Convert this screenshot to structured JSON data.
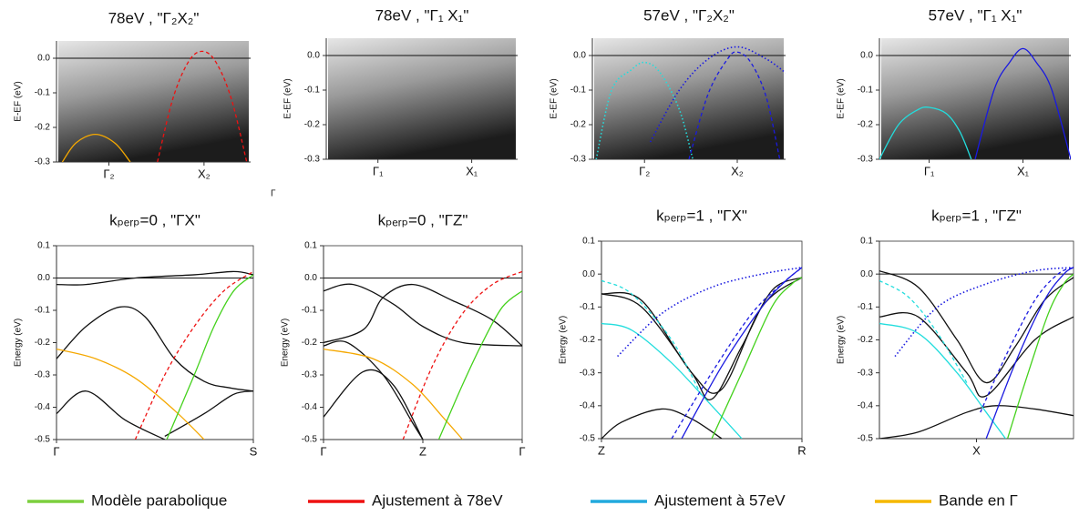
{
  "chart_data": [
    {
      "type": "line",
      "title": "78eV , \"Γ₂X₂\"",
      "ylabel": "E-EF (eV)",
      "image": true,
      "zero_line": true,
      "xlim": [
        0,
        1
      ],
      "xticks": [
        {
          "value": 0.27,
          "label": "Γ₂"
        },
        {
          "value": 0.76,
          "label": "X₂"
        }
      ],
      "ylim": [
        -0.3,
        0.05
      ],
      "yticks": [
        {
          "value": 0,
          "label": "0.0"
        },
        -0.1,
        -0.2,
        -0.3
      ],
      "series": [
        {
          "color": "#f5a800",
          "style": "solid",
          "x": [
            0.03,
            0.1,
            0.2,
            0.3,
            0.38
          ],
          "values": [
            -0.3,
            -0.245,
            -0.22,
            -0.245,
            -0.3
          ]
        },
        {
          "color": "#ee1111",
          "style": "dashed",
          "x": [
            0.52,
            0.6,
            0.68,
            0.75,
            0.82,
            0.9,
            0.98
          ],
          "values": [
            -0.3,
            -0.116,
            -0.01,
            0.02,
            -0.01,
            -0.116,
            -0.3
          ]
        }
      ]
    },
    {
      "type": "line",
      "title": "78eV , \"Γ₁ X₁\"",
      "ylabel": "E-EF (eV)",
      "image": true,
      "zero_line": true,
      "xlim": [
        0,
        1
      ],
      "xticks": [
        {
          "value": 0.27,
          "label": "Γ₁"
        },
        {
          "value": 0.76,
          "label": "X₁"
        }
      ],
      "ylim": [
        -0.3,
        0.05
      ],
      "yticks": [
        {
          "value": 0,
          "label": "0.0"
        },
        -0.1,
        -0.2,
        -0.3
      ],
      "series": []
    },
    {
      "type": "line",
      "title": "57eV , \"Γ₂X₂\"",
      "ylabel": "E-EF (eV)",
      "image": true,
      "zero_line": true,
      "xlim": [
        0,
        1
      ],
      "xticks": [
        {
          "value": 0.27,
          "label": "Γ₂"
        },
        {
          "value": 0.75,
          "label": "X₂"
        }
      ],
      "ylim": [
        -0.3,
        0.05
      ],
      "yticks": [
        {
          "value": 0,
          "label": "0.0"
        },
        -0.1,
        -0.2,
        -0.3
      ],
      "series": [
        {
          "color": "#22dddd",
          "style": "dotted",
          "x": [
            0.02,
            0.1,
            0.2,
            0.27,
            0.35,
            0.45,
            0.52
          ],
          "values": [
            -0.3,
            -0.1,
            -0.042,
            -0.02,
            -0.049,
            -0.156,
            -0.3
          ]
        },
        {
          "color": "#1a1ae0",
          "style": "dashed",
          "x": [
            0.5,
            0.6,
            0.7,
            0.75,
            0.82,
            0.9,
            0.97
          ],
          "values": [
            -0.3,
            -0.11,
            -0.01,
            0.01,
            -0.02,
            -0.12,
            -0.3
          ]
        },
        {
          "color": "#1a1ae0",
          "style": "dotted",
          "x": [
            0.3,
            0.45,
            0.6,
            0.75,
            0.9,
            1
          ],
          "values": [
            -0.25,
            -0.1,
            -0.01,
            0.025,
            -0.01,
            -0.05
          ]
        }
      ]
    },
    {
      "type": "line",
      "title": "57eV , \"Γ₁ X₁\"",
      "ylabel": "E-EF (eV)",
      "image": true,
      "zero_line": true,
      "xlim": [
        0,
        1
      ],
      "xticks": [
        {
          "value": 0.26,
          "label": "Γ₁"
        },
        {
          "value": 0.75,
          "label": "X₁"
        }
      ],
      "ylim": [
        -0.3,
        0.05
      ],
      "yticks": [
        {
          "value": 0,
          "label": "0.0"
        },
        -0.1,
        -0.2,
        -0.3
      ],
      "series": [
        {
          "color": "#22dddd",
          "style": "solid",
          "x": [
            0,
            0.1,
            0.2,
            0.26,
            0.35,
            0.42,
            0.48
          ],
          "values": [
            -0.3,
            -0.2,
            -0.157,
            -0.15,
            -0.168,
            -0.22,
            -0.3
          ]
        },
        {
          "color": "#1a1ae0",
          "style": "solid",
          "x": [
            0.5,
            0.6,
            0.68,
            0.75,
            0.82,
            0.9,
            1
          ],
          "values": [
            -0.3,
            -0.098,
            -0.02,
            0.02,
            -0.02,
            -0.098,
            -0.3
          ]
        }
      ]
    },
    {
      "type": "line",
      "title": "kₚₑᵣₚ=0 , \"ΓX\"",
      "ylabel": "Energy (eV)",
      "image": false,
      "zero_line": true,
      "xlim": [
        0,
        1
      ],
      "xticks": [
        {
          "value": 0,
          "label": "Γ"
        },
        {
          "value": 1,
          "label": "S"
        }
      ],
      "ylim": [
        -0.5,
        0.1
      ],
      "yticks": [
        0.1,
        {
          "value": 0,
          "label": "0.0"
        },
        -0.1,
        -0.2,
        -0.3,
        -0.4,
        -0.5
      ],
      "series": [
        {
          "color": "#111111",
          "style": "solid",
          "x": [
            0,
            0.15,
            0.4,
            0.7,
            0.9,
            1
          ],
          "values": [
            -0.02,
            -0.02,
            0,
            0.01,
            0.02,
            0.01
          ]
        },
        {
          "color": "#111111",
          "style": "solid",
          "x": [
            0,
            0.15,
            0.32,
            0.45,
            0.6,
            0.75,
            0.88,
            1
          ],
          "values": [
            -0.25,
            -0.15,
            -0.09,
            -0.12,
            -0.25,
            -0.32,
            -0.34,
            -0.35
          ]
        },
        {
          "color": "#111111",
          "style": "solid",
          "x": [
            0,
            0.15,
            0.35,
            0.55
          ],
          "values": [
            -0.42,
            -0.35,
            -0.44,
            -0.5
          ]
        },
        {
          "color": "#111111",
          "style": "solid",
          "x": [
            0.55,
            0.75,
            0.9,
            1
          ],
          "values": [
            -0.49,
            -0.42,
            -0.36,
            -0.35
          ]
        },
        {
          "color": "#f5a800",
          "style": "solid",
          "x": [
            0,
            0.2,
            0.4,
            0.6,
            0.75
          ],
          "values": [
            -0.22,
            -0.25,
            -0.31,
            -0.41,
            -0.5
          ]
        },
        {
          "color": "#ee1111",
          "style": "dashed",
          "x": [
            0.4,
            0.55,
            0.7,
            0.85,
            1
          ],
          "values": [
            -0.5,
            -0.3,
            -0.15,
            -0.04,
            0.02
          ]
        },
        {
          "color": "#44d11c",
          "style": "solid",
          "x": [
            0.56,
            0.7,
            0.8,
            0.9,
            1
          ],
          "values": [
            -0.5,
            -0.3,
            -0.15,
            -0.04,
            0.01
          ]
        }
      ]
    },
    {
      "type": "line",
      "title": "kₚₑᵣₚ=0 , \"ΓZ\"",
      "ylabel": "Energy (eV)",
      "image": false,
      "zero_line": true,
      "xlim": [
        0,
        1
      ],
      "xticks": [
        {
          "value": 0,
          "label": "Γ"
        },
        {
          "value": 0.5,
          "label": "Z"
        },
        {
          "value": 1,
          "label": "Γ"
        }
      ],
      "ylim": [
        -0.5,
        0.1
      ],
      "yticks": [
        0.1,
        {
          "value": 0,
          "label": "0.0"
        },
        -0.1,
        -0.2,
        -0.3,
        -0.4,
        -0.5
      ],
      "series": [
        {
          "color": "#111111",
          "style": "solid",
          "x": [
            0,
            0.15,
            0.35,
            0.5,
            0.7,
            1
          ],
          "values": [
            -0.04,
            -0.02,
            -0.08,
            -0.15,
            -0.2,
            -0.21
          ]
        },
        {
          "color": "#111111",
          "style": "solid",
          "x": [
            0,
            0.2,
            0.3,
            0.45,
            0.65,
            0.85,
            1
          ],
          "values": [
            -0.2,
            -0.16,
            -0.06,
            -0.02,
            -0.07,
            -0.13,
            -0.21
          ]
        },
        {
          "color": "#111111",
          "style": "solid",
          "x": [
            0,
            0.12,
            0.3,
            0.45,
            0.5
          ],
          "values": [
            -0.21,
            -0.2,
            -0.3,
            -0.45,
            -0.5
          ]
        },
        {
          "color": "#111111",
          "style": "solid",
          "x": [
            0,
            0.2,
            0.35,
            0.5
          ],
          "values": [
            -0.43,
            -0.29,
            -0.33,
            -0.5
          ]
        },
        {
          "color": "#f5a800",
          "style": "solid",
          "x": [
            0,
            0.25,
            0.45,
            0.6,
            0.7
          ],
          "values": [
            -0.22,
            -0.25,
            -0.33,
            -0.43,
            -0.5
          ]
        },
        {
          "color": "#ee1111",
          "style": "dashed",
          "x": [
            0.4,
            0.55,
            0.7,
            0.85,
            1
          ],
          "values": [
            -0.5,
            -0.27,
            -0.11,
            -0.02,
            0.02
          ]
        },
        {
          "color": "#44d11c",
          "style": "solid",
          "x": [
            0.58,
            0.7,
            0.8,
            0.9,
            1
          ],
          "values": [
            -0.5,
            -0.33,
            -0.2,
            -0.09,
            -0.04
          ]
        }
      ]
    },
    {
      "type": "line",
      "title": "kₚₑᵣₚ=1 , \"ΓX\"",
      "ylabel": "Energy (eV)",
      "image": false,
      "zero_line": false,
      "xlim": [
        0,
        1
      ],
      "xticks": [
        {
          "value": 0,
          "label": "Z"
        },
        {
          "value": 1,
          "label": "R"
        }
      ],
      "ylim": [
        -0.5,
        0.1
      ],
      "yticks": [
        0.1,
        {
          "value": 0,
          "label": "0.0"
        },
        -0.1,
        -0.2,
        -0.3,
        -0.4,
        -0.5
      ],
      "series": [
        {
          "color": "#111111",
          "style": "solid",
          "x": [
            0,
            0.2,
            0.45,
            0.55,
            0.7,
            0.85,
            1
          ],
          "values": [
            -0.06,
            -0.1,
            -0.3,
            -0.38,
            -0.22,
            -0.05,
            -0.01
          ]
        },
        {
          "color": "#111111",
          "style": "solid",
          "x": [
            0,
            0.2,
            0.45,
            0.6,
            0.8,
            1
          ],
          "values": [
            -0.06,
            -0.08,
            -0.3,
            -0.35,
            -0.1,
            -0.01
          ]
        },
        {
          "color": "#111111",
          "style": "solid",
          "x": [
            0,
            0.1,
            0.3,
            0.45,
            0.6
          ],
          "values": [
            -0.5,
            -0.45,
            -0.41,
            -0.44,
            -0.5
          ]
        },
        {
          "color": "#22dddd",
          "style": "solid",
          "x": [
            0,
            0.15,
            0.35,
            0.55,
            0.7
          ],
          "values": [
            -0.15,
            -0.17,
            -0.27,
            -0.4,
            -0.5
          ]
        },
        {
          "color": "#22dddd",
          "style": "dashed",
          "x": [
            0,
            0.15,
            0.35,
            0.5
          ],
          "values": [
            -0.02,
            -0.06,
            -0.2,
            -0.37
          ]
        },
        {
          "color": "#1a1ae0",
          "style": "dotted",
          "x": [
            0.08,
            0.3,
            0.55,
            0.8,
            1
          ],
          "values": [
            -0.25,
            -0.12,
            -0.04,
            0,
            0.02
          ]
        },
        {
          "color": "#1a1ae0",
          "style": "dashed",
          "x": [
            0.35,
            0.55,
            0.75,
            0.9,
            1
          ],
          "values": [
            -0.5,
            -0.3,
            -0.12,
            -0.03,
            0.02
          ]
        },
        {
          "color": "#1a1ae0",
          "style": "solid",
          "x": [
            0.4,
            0.6,
            0.8,
            0.92,
            1
          ],
          "values": [
            -0.5,
            -0.28,
            -0.1,
            -0.02,
            0.02
          ]
        },
        {
          "color": "#44d11c",
          "style": "solid",
          "x": [
            0.55,
            0.7,
            0.85,
            0.95,
            1
          ],
          "values": [
            -0.5,
            -0.3,
            -0.1,
            -0.03,
            -0.01
          ]
        }
      ]
    },
    {
      "type": "line",
      "title": "kₚₑᵣₚ=1 , \"ΓZ\"",
      "ylabel": "Energy (eV)",
      "image": false,
      "zero_line": true,
      "xlim": [
        0,
        1
      ],
      "xticks": [
        {
          "value": 0.5,
          "label": "X"
        }
      ],
      "ylim": [
        -0.5,
        0.1
      ],
      "yticks": [
        0.1,
        {
          "value": 0,
          "label": "0.0"
        },
        -0.1,
        -0.2,
        -0.3,
        -0.4,
        -0.5
      ],
      "series": [
        {
          "color": "#111111",
          "style": "solid",
          "x": [
            0,
            0.2,
            0.4,
            0.55,
            0.7,
            0.85,
            1
          ],
          "values": [
            0.01,
            -0.04,
            -0.2,
            -0.33,
            -0.22,
            -0.08,
            -0.01
          ]
        },
        {
          "color": "#111111",
          "style": "solid",
          "x": [
            0,
            0.2,
            0.45,
            0.55,
            0.8,
            1
          ],
          "values": [
            -0.13,
            -0.13,
            -0.3,
            -0.37,
            -0.2,
            -0.13
          ]
        },
        {
          "color": "#111111",
          "style": "solid",
          "x": [
            0,
            0.2,
            0.45,
            0.6,
            0.8,
            1
          ],
          "values": [
            -0.5,
            -0.48,
            -0.42,
            -0.4,
            -0.41,
            -0.43
          ]
        },
        {
          "color": "#22dddd",
          "style": "solid",
          "x": [
            0,
            0.2,
            0.4,
            0.55,
            0.65
          ],
          "values": [
            -0.15,
            -0.18,
            -0.3,
            -0.42,
            -0.5
          ]
        },
        {
          "color": "#22dddd",
          "style": "dashed",
          "x": [
            0,
            0.15,
            0.3,
            0.45
          ],
          "values": [
            -0.02,
            -0.07,
            -0.18,
            -0.33
          ]
        },
        {
          "color": "#1a1ae0",
          "style": "dotted",
          "x": [
            0.08,
            0.3,
            0.55,
            0.8,
            1
          ],
          "values": [
            -0.25,
            -0.1,
            -0.03,
            0.01,
            0.02
          ]
        },
        {
          "color": "#1a1ae0",
          "style": "dashed",
          "x": [
            0.52,
            0.65,
            0.8,
            0.92,
            1
          ],
          "values": [
            -0.42,
            -0.25,
            -0.08,
            0,
            0.02
          ]
        },
        {
          "color": "#1a1ae0",
          "style": "solid",
          "x": [
            0.55,
            0.7,
            0.85,
            0.95,
            1
          ],
          "values": [
            -0.5,
            -0.27,
            -0.08,
            0,
            0.02
          ]
        },
        {
          "color": "#44d11c",
          "style": "solid",
          "x": [
            0.66,
            0.75,
            0.87,
            0.95,
            1
          ],
          "values": [
            -0.5,
            -0.33,
            -0.12,
            -0.03,
            0
          ]
        }
      ]
    }
  ],
  "stray_label": "Γ",
  "legend": [
    {
      "name": "Modèle parabolique",
      "color": "#7ccf3e"
    },
    {
      "name": "Ajustement à 78eV",
      "color": "#ee1111"
    },
    {
      "name": "Ajustement à 57eV",
      "color": "#22aadd"
    },
    {
      "name": "Bande en Γ",
      "color": "#f5b800"
    }
  ]
}
